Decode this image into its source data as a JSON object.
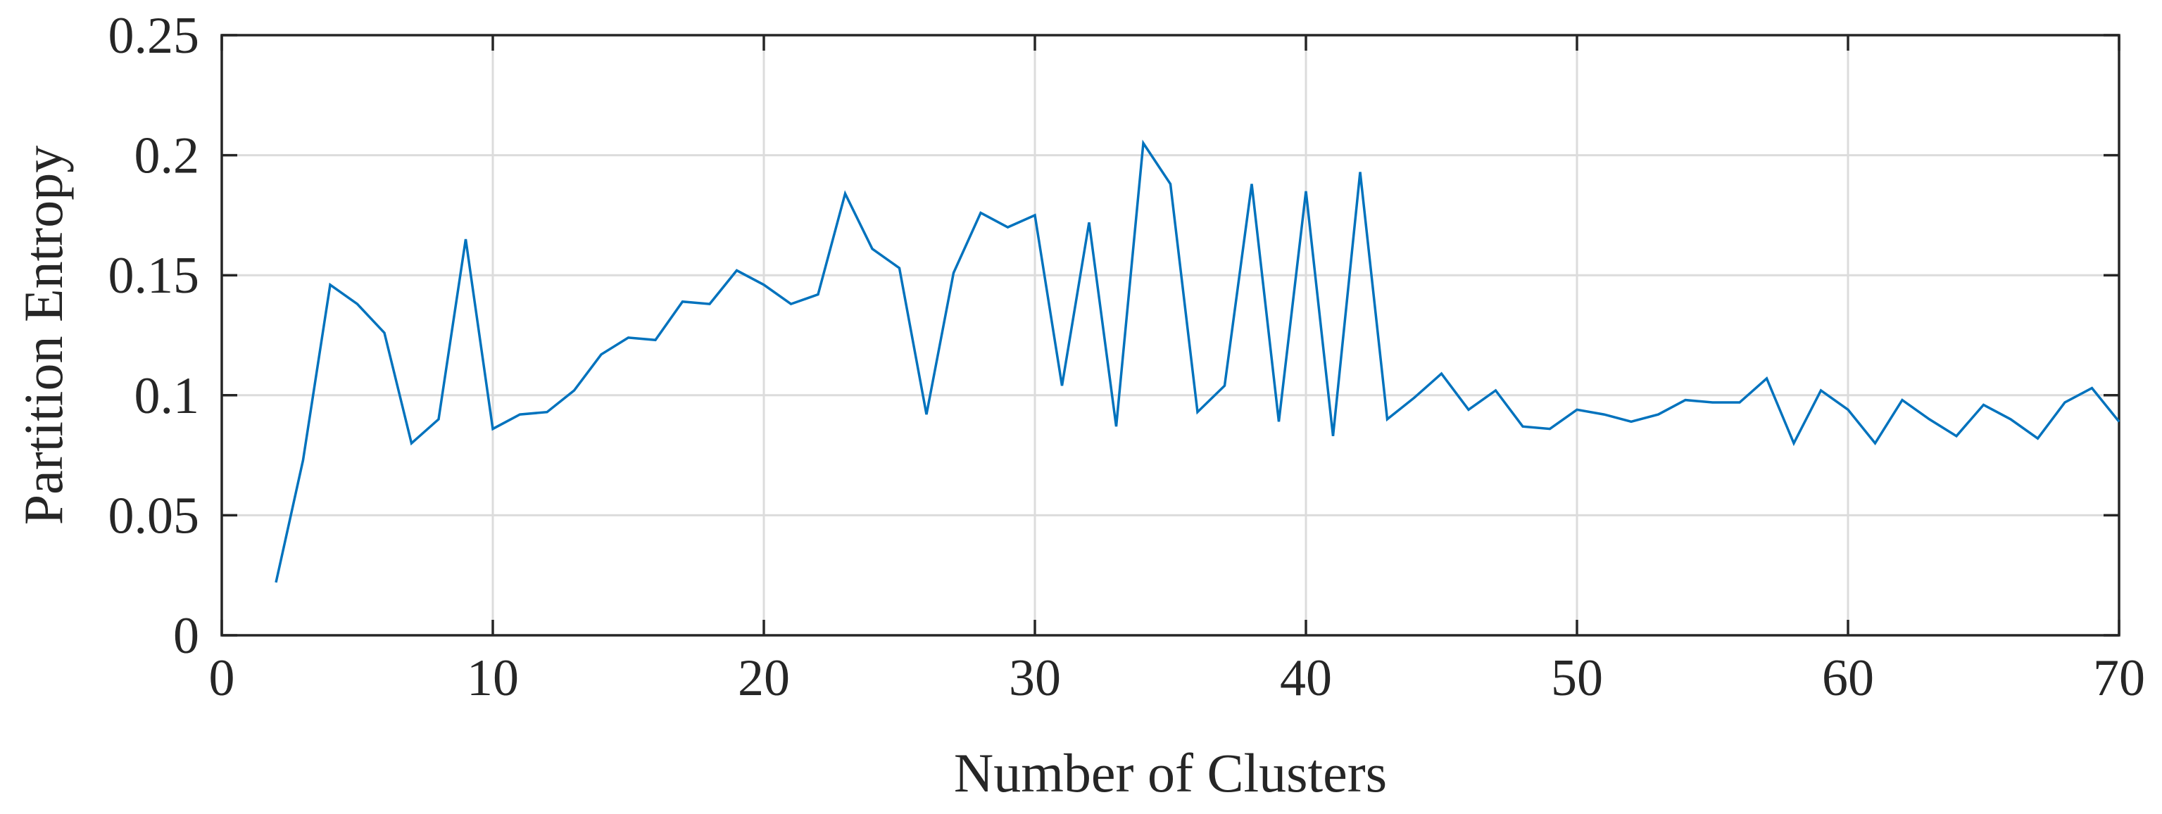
{
  "chart_data": {
    "type": "line",
    "title": "",
    "xlabel": "Number of Clusters",
    "ylabel": "Partition Entropy",
    "xlim": [
      0,
      70
    ],
    "ylim": [
      0,
      0.25
    ],
    "xticks": [
      0,
      10,
      20,
      30,
      40,
      50,
      60,
      70
    ],
    "yticks": [
      0,
      0.05,
      0.1,
      0.15,
      0.2,
      0.25
    ],
    "xtick_labels": [
      "0",
      "10",
      "20",
      "30",
      "40",
      "50",
      "60",
      "70"
    ],
    "ytick_labels": [
      "0",
      "0.05",
      "0.1",
      "0.15",
      "0.2",
      "0.25"
    ],
    "grid": true,
    "legend": "none",
    "line_color": "#0072BD",
    "series": [
      {
        "x": [
          2,
          3,
          4,
          5,
          6,
          7,
          8,
          9,
          10,
          11,
          12,
          13,
          14,
          15,
          16,
          17,
          18,
          19,
          20,
          21,
          22,
          23,
          24,
          25,
          26,
          27,
          28,
          29,
          30,
          31,
          32,
          33,
          34,
          35,
          36,
          37,
          38,
          39,
          40,
          41,
          42,
          43,
          44,
          45,
          46,
          47,
          48,
          49,
          50,
          51,
          52,
          53,
          54,
          55,
          56,
          57,
          58,
          59,
          60,
          61,
          62,
          63,
          64,
          65,
          66,
          67,
          68,
          69,
          70
        ],
        "values": [
          0.022,
          0.073,
          0.146,
          0.138,
          0.126,
          0.08,
          0.09,
          0.165,
          0.086,
          0.092,
          0.093,
          0.102,
          0.117,
          0.124,
          0.123,
          0.139,
          0.138,
          0.152,
          0.146,
          0.138,
          0.142,
          0.184,
          0.161,
          0.153,
          0.092,
          0.151,
          0.176,
          0.17,
          0.175,
          0.104,
          0.172,
          0.087,
          0.205,
          0.188,
          0.093,
          0.104,
          0.188,
          0.089,
          0.185,
          0.083,
          0.193,
          0.09,
          0.099,
          0.109,
          0.094,
          0.102,
          0.087,
          0.086,
          0.094,
          0.092,
          0.089,
          0.092,
          0.098,
          0.097,
          0.097,
          0.107,
          0.08,
          0.102,
          0.094,
          0.08,
          0.098,
          0.09,
          0.083,
          0.096,
          0.09,
          0.082,
          0.097,
          0.103,
          0.089
        ]
      }
    ]
  }
}
